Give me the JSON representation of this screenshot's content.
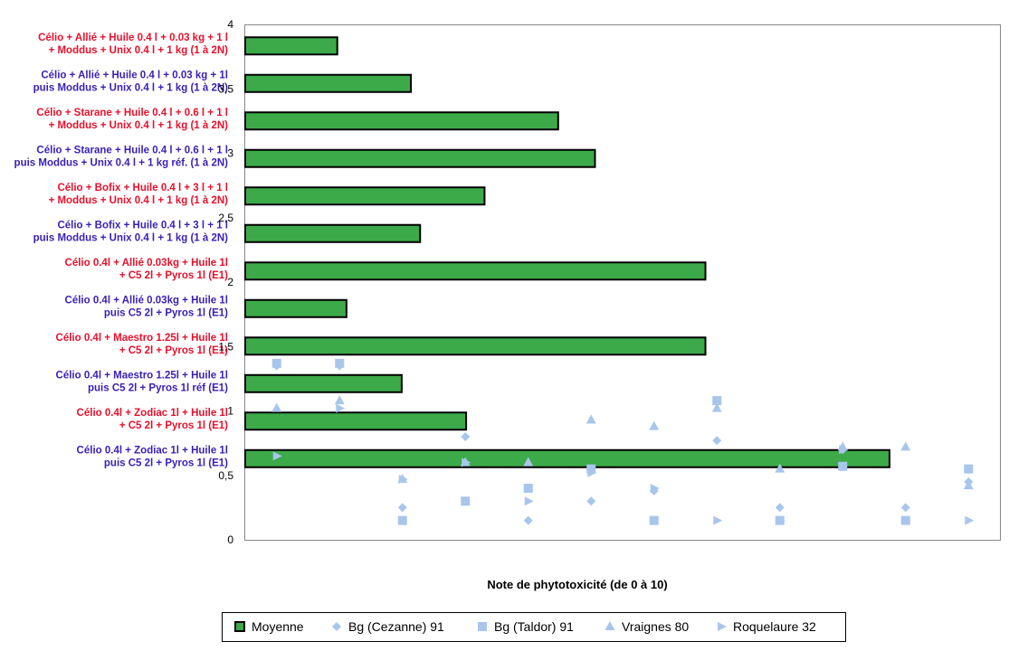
{
  "chart_data": {
    "type": "bar",
    "orientation": "horizontal",
    "xlabel": "Note de phytotoxicité (de 0 à 10)",
    "ylabel": "",
    "ylim": [
      0,
      4
    ],
    "yticks": [
      "0",
      "0,5",
      "1",
      "1,5",
      "2",
      "2,5",
      "3",
      "3,5",
      "4"
    ],
    "grid": false,
    "legend_position": "bottom",
    "categories": [
      {
        "line1": "Célio + Allié + Huile 0.4 l + 0.03 kg + 1 l",
        "line2": "+ Moddus + Unix  0.4 l + 1 kg (1 à 2N)",
        "color": "#e8102b"
      },
      {
        "line1": "Célio + Allié + Huile 0.4 l + 0.03 kg + 1l",
        "line2": "puis Moddus + Unix  0.4 l + 1 kg (1 à 2N)",
        "color": "#3a1fb5"
      },
      {
        "line1": "Célio + Starane + Huile 0.4 l + 0.6 l + 1 l",
        "line2": "+ Moddus + Unix 0.4 l + 1 kg (1 à 2N)",
        "color": "#e8102b"
      },
      {
        "line1": "Célio + Starane + Huile 0.4 l + 0.6 l + 1 l",
        "line2": "puis Moddus + Unix 0.4 l + 1 kg réf. (1 à 2N)",
        "color": "#3a1fb5"
      },
      {
        "line1": "Célio + Bofix + Huile 0.4 l  + 3 l + 1 l",
        "line2": "+ Moddus + Unix 0.4 l + 1 kg (1 à 2N)",
        "color": "#e8102b"
      },
      {
        "line1": "Célio + Bofix + Huile 0.4 l  + 3 l + 1 l",
        "line2": "puis Moddus + Unix 0.4 l + 1 kg (1 à 2N)",
        "color": "#3a1fb5"
      },
      {
        "line1": "Célio 0.4l + Allié 0.03kg + Huile 1l",
        "line2": "+ C5 2l + Pyros 1l (E1)",
        "color": "#e8102b"
      },
      {
        "line1": "Célio 0.4l + Allié 0.03kg + Huile 1l",
        "line2": "puis C5 2l + Pyros 1l (E1)",
        "color": "#3a1fb5"
      },
      {
        "line1": "Célio 0.4l + Maestro 1.25l + Huile 1l",
        "line2": "+ C5 2l + Pyros 1l (E1)",
        "color": "#e8102b"
      },
      {
        "line1": "Célio 0.4l + Maestro 1.25l + Huile 1l",
        "line2": "puis C5 2l + Pyros 1l  réf (E1)",
        "color": "#3a1fb5"
      },
      {
        "line1": "Célio 0.4l + Zodiac 1l + Huile 1l",
        "line2": "+ C5 2l + Pyros 1l (E1)",
        "color": "#e8102b"
      },
      {
        "line1": "Célio 0.4l + Zodiac 1l + Huile 1l",
        "line2": "puis C5 2l + Pyros 1l (E1)",
        "color": "#3a1fb5"
      }
    ],
    "series": [
      {
        "name": "Moyenne",
        "marker": "square",
        "color": "#3daa49",
        "values": [
          0.5,
          0.9,
          1.7,
          1.9,
          1.3,
          0.95,
          2.5,
          0.55,
          2.5,
          0.85,
          1.2,
          3.5
        ]
      },
      {
        "name": "Bg (Cezanne) 91",
        "marker": "diamond",
        "color": "#a8c6ec",
        "points": [
          [
            1,
            1.35
          ],
          [
            2,
            1.35
          ],
          [
            3,
            0.25
          ],
          [
            4,
            0.8
          ],
          [
            5,
            0.15
          ],
          [
            6,
            0.3
          ],
          [
            7,
            0.38
          ],
          [
            8,
            0.77
          ],
          [
            9,
            0.25
          ],
          [
            10,
            0.7
          ],
          [
            11,
            0.25
          ],
          [
            12,
            0.45
          ]
        ]
      },
      {
        "name": "Bg (Taldor) 91",
        "marker": "square",
        "color": "#a8c6ec",
        "points": [
          [
            1,
            1.37
          ],
          [
            2,
            1.37
          ],
          [
            3,
            0.15
          ],
          [
            4,
            0.3
          ],
          [
            5,
            0.4
          ],
          [
            6,
            0.55
          ],
          [
            7,
            0.15
          ],
          [
            8,
            1.08
          ],
          [
            9,
            0.15
          ],
          [
            10,
            0.57
          ],
          [
            11,
            0.15
          ],
          [
            12,
            0.55
          ]
        ]
      },
      {
        "name": "Vraignes 80",
        "marker": "triangle",
        "color": "#a8c6ec",
        "points": [
          [
            1,
            1.02
          ],
          [
            2,
            1.08
          ],
          [
            3,
            0.47
          ],
          [
            4,
            0.6
          ],
          [
            5,
            0.6
          ],
          [
            6,
            0.93
          ],
          [
            7,
            0.88
          ],
          [
            8,
            1.02
          ],
          [
            9,
            0.55
          ],
          [
            10,
            0.72
          ],
          [
            11,
            0.72
          ],
          [
            12,
            0.42
          ]
        ]
      },
      {
        "name": "Roquelaure 32",
        "marker": "triangle-right",
        "color": "#a8c6ec",
        "points": [
          [
            1,
            0.65
          ],
          [
            2,
            1.02
          ],
          [
            3,
            0.47
          ],
          [
            4,
            0.6
          ],
          [
            5,
            0.3
          ],
          [
            6,
            0.52
          ],
          [
            7,
            0.4
          ],
          [
            8,
            0.15
          ],
          [
            9,
            0.15
          ],
          [
            10,
            0.7
          ],
          [
            11,
            0.15
          ],
          [
            12,
            0.15
          ]
        ]
      }
    ]
  }
}
